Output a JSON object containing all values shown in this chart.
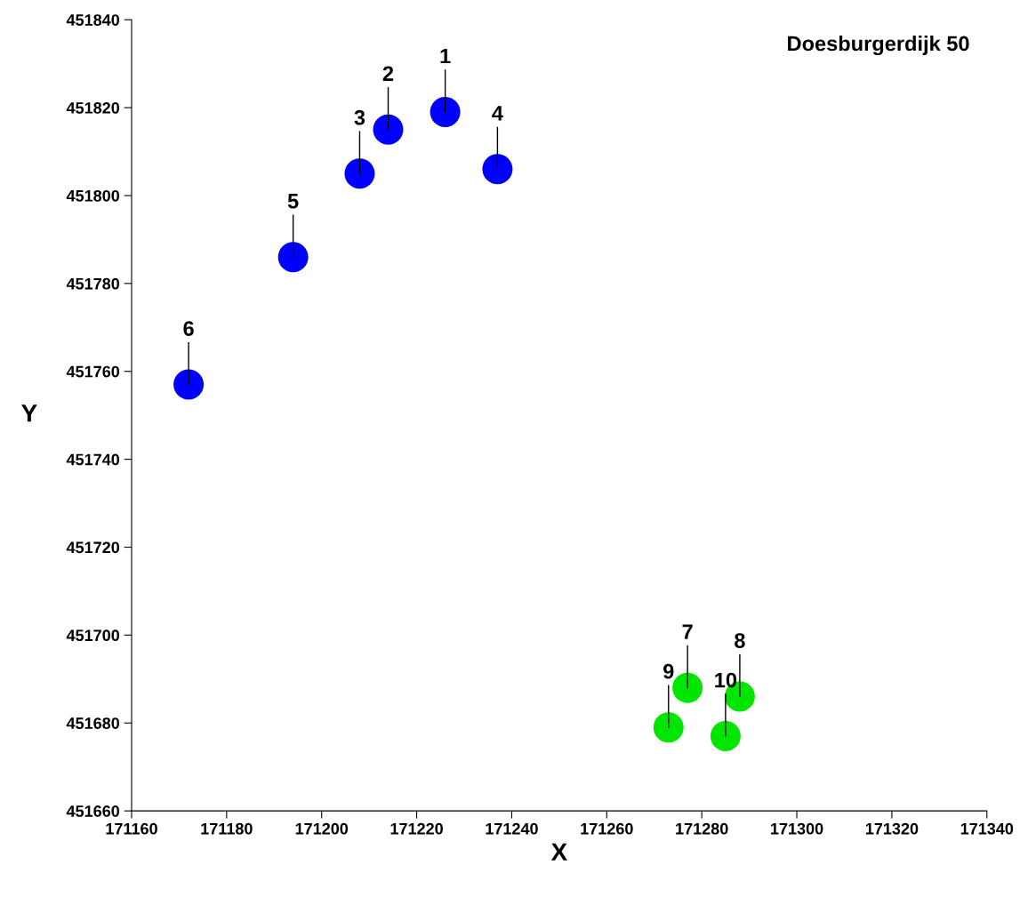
{
  "chart_data": {
    "type": "scatter",
    "title": "Doesburgerdijk 50",
    "xlabel": "X",
    "ylabel": "Y",
    "series": [
      {
        "color": "#0000ff",
        "x": [
          171226,
          171214,
          171208,
          171237,
          171194,
          171172
        ],
        "values": [
          451819,
          451815,
          451805,
          451806,
          451786,
          451757
        ]
      },
      {
        "color": "#00e600",
        "x": [
          171277,
          171288,
          171273,
          171285
        ],
        "values": [
          451688,
          451686,
          451679,
          451677
        ]
      }
    ],
    "annotations": [
      {
        "text": "1",
        "x": 171226,
        "y": 451819
      },
      {
        "text": "2",
        "x": 171214,
        "y": 451815
      },
      {
        "text": "3",
        "x": 171208,
        "y": 451805
      },
      {
        "text": "4",
        "x": 171237,
        "y": 451806
      },
      {
        "text": "5",
        "x": 171194,
        "y": 451786
      },
      {
        "text": "6",
        "x": 171172,
        "y": 451757
      },
      {
        "text": "7",
        "x": 171277,
        "y": 451688
      },
      {
        "text": "8",
        "x": 171288,
        "y": 451686
      },
      {
        "text": "9",
        "x": 171273,
        "y": 451679
      },
      {
        "text": "10",
        "x": 171285,
        "y": 451677
      }
    ],
    "xlim": [
      171160,
      171340
    ],
    "xticks": [
      171160,
      171180,
      171200,
      171220,
      171240,
      171260,
      171280,
      171300,
      171320,
      171340
    ],
    "ylim": [
      451660,
      451840
    ],
    "yticks": [
      451660,
      451680,
      451700,
      451720,
      451740,
      451760,
      451780,
      451800,
      451820,
      451840
    ],
    "marker": "circle",
    "grid": false,
    "legend": false
  }
}
